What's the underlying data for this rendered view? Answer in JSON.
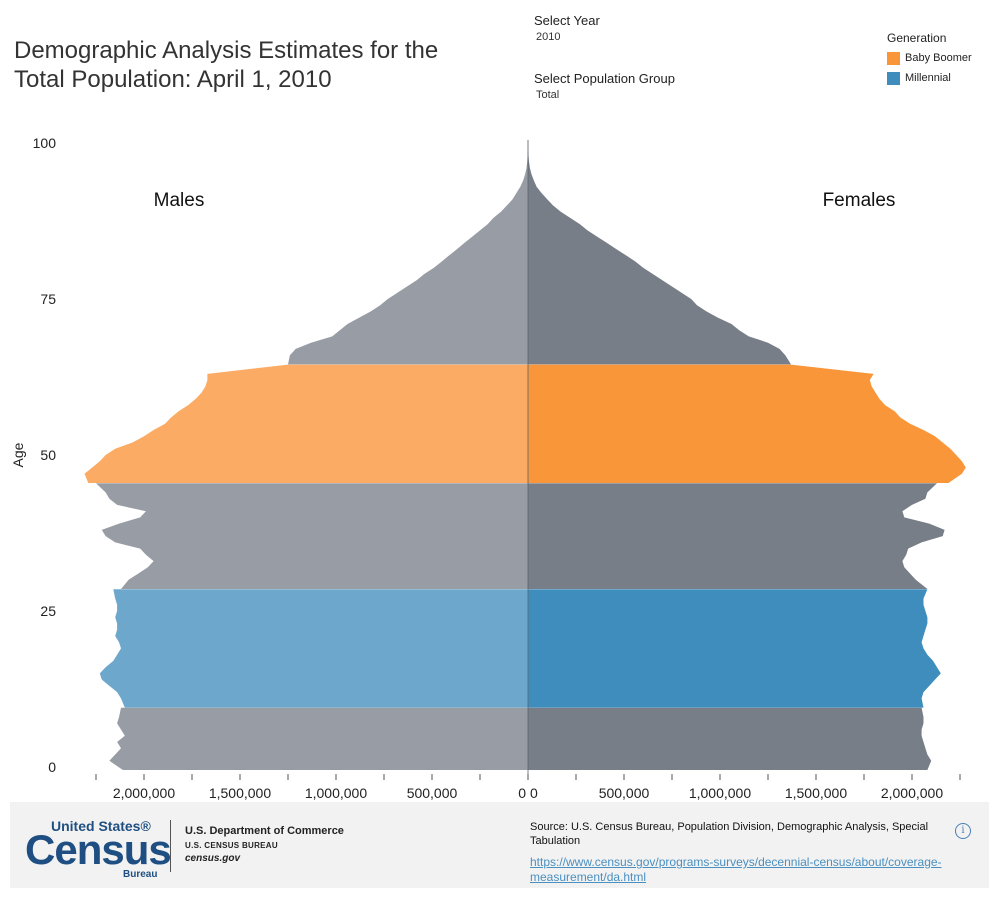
{
  "title": "Demographic Analysis Estimates for the Total Population: April 1, 2010",
  "controls": {
    "year_label": "Select Year",
    "year_value": "2010",
    "group_label": "Select Population Group",
    "group_value": "Total"
  },
  "legend": {
    "title": "Generation",
    "items": [
      {
        "label": "Baby Boomer",
        "color": "#f9963a"
      },
      {
        "label": "Millennial",
        "color": "#3f8dbd"
      }
    ]
  },
  "chart_data": {
    "type": "area",
    "subtype": "population-pyramid",
    "ylabel": "Age",
    "y_ticks": [
      0,
      25,
      50,
      75,
      100
    ],
    "x_ticks_left": [
      "2,000,000",
      "1,500,000",
      "1,000,000",
      "500,000",
      "0"
    ],
    "x_ticks_right": [
      "0",
      "500,000",
      "1,000,000",
      "1,500,000",
      "2,000,000"
    ],
    "xlim": [
      -2300000,
      2300000
    ],
    "ylim": [
      -0.5,
      100.5
    ],
    "side_labels": {
      "left": "Males",
      "right": "Females"
    },
    "colors": {
      "other_male": "#989da5",
      "other_female": "#787e87",
      "boomer_male": "#fbab63",
      "boomer_female": "#f9963a",
      "millennial_male": "#6ea7cc",
      "millennial_female": "#3f8dbd"
    },
    "generations": [
      {
        "name": "",
        "age_range": [
          0,
          9
        ]
      },
      {
        "name": "Millennial",
        "age_range": [
          10,
          28
        ]
      },
      {
        "name": "",
        "age_range": [
          29,
          45
        ]
      },
      {
        "name": "Baby Boomer",
        "age_range": [
          46,
          64
        ]
      },
      {
        "name": "",
        "age_range": [
          65,
          100
        ]
      }
    ],
    "ages": [
      0,
      1,
      2,
      3,
      4,
      5,
      6,
      7,
      8,
      9,
      10,
      11,
      12,
      13,
      14,
      15,
      16,
      17,
      18,
      19,
      20,
      21,
      22,
      23,
      24,
      25,
      26,
      27,
      28,
      29,
      30,
      31,
      32,
      33,
      34,
      35,
      36,
      37,
      38,
      39,
      40,
      41,
      42,
      43,
      44,
      45,
      46,
      47,
      48,
      49,
      50,
      51,
      52,
      53,
      54,
      55,
      56,
      57,
      58,
      59,
      60,
      61,
      62,
      63,
      64,
      65,
      66,
      67,
      68,
      69,
      70,
      71,
      72,
      73,
      74,
      75,
      76,
      77,
      78,
      79,
      80,
      81,
      82,
      83,
      84,
      85,
      86,
      87,
      88,
      89,
      90,
      91,
      92,
      93,
      94,
      95,
      96,
      97,
      98,
      99,
      100
    ],
    "males": [
      2110000,
      2180000,
      2150000,
      2120000,
      2140000,
      2100000,
      2120000,
      2140000,
      2130000,
      2120000,
      2100000,
      2120000,
      2140000,
      2180000,
      2220000,
      2230000,
      2200000,
      2160000,
      2140000,
      2120000,
      2130000,
      2150000,
      2140000,
      2140000,
      2150000,
      2140000,
      2140000,
      2150000,
      2160000,
      2120000,
      2080000,
      2030000,
      1980000,
      1950000,
      1990000,
      2020000,
      2150000,
      2200000,
      2220000,
      2130000,
      2020000,
      1990000,
      2140000,
      2180000,
      2200000,
      2250000,
      2290000,
      2310000,
      2270000,
      2230000,
      2200000,
      2150000,
      2060000,
      2000000,
      1950000,
      1890000,
      1860000,
      1820000,
      1770000,
      1730000,
      1700000,
      1680000,
      1670000,
      1670000,
      1250000,
      1250000,
      1240000,
      1210000,
      1130000,
      1020000,
      980000,
      940000,
      880000,
      820000,
      770000,
      730000,
      680000,
      630000,
      580000,
      540000,
      490000,
      450000,
      410000,
      370000,
      330000,
      290000,
      250000,
      210000,
      180000,
      140000,
      110000,
      80000,
      60000,
      40000,
      25000,
      15000,
      8000,
      4000,
      2000,
      1000,
      500
    ],
    "females": [
      2080000,
      2100000,
      2080000,
      2070000,
      2060000,
      2050000,
      2050000,
      2060000,
      2060000,
      2050000,
      2060000,
      2050000,
      2060000,
      2090000,
      2120000,
      2150000,
      2130000,
      2110000,
      2080000,
      2060000,
      2050000,
      2060000,
      2070000,
      2080000,
      2080000,
      2070000,
      2060000,
      2060000,
      2080000,
      2080000,
      2020000,
      1990000,
      1960000,
      1950000,
      1970000,
      1980000,
      2050000,
      2160000,
      2170000,
      2090000,
      1960000,
      1950000,
      2000000,
      2070000,
      2080000,
      2130000,
      2190000,
      2260000,
      2280000,
      2260000,
      2230000,
      2200000,
      2160000,
      2120000,
      2060000,
      1990000,
      1940000,
      1910000,
      1860000,
      1830000,
      1810000,
      1790000,
      1780000,
      1800000,
      1370000,
      1370000,
      1340000,
      1310000,
      1250000,
      1150000,
      1100000,
      1060000,
      990000,
      930000,
      880000,
      850000,
      800000,
      750000,
      700000,
      650000,
      600000,
      560000,
      510000,
      460000,
      410000,
      360000,
      310000,
      270000,
      220000,
      170000,
      130000,
      100000,
      70000,
      45000,
      30000,
      18000,
      10000,
      5000,
      2500,
      1200,
      600
    ]
  },
  "footer": {
    "logo_top": "United States®",
    "logo_main": "Census",
    "logo_bottom": "Bureau",
    "dept": "U.S. Department of Commerce",
    "bureau": "U.S. CENSUS BUREAU",
    "site": "census.gov",
    "source": "Source: U.S. Census Bureau, Population Division, Demographic Analysis, Special Tabulation",
    "link": "https://www.census.gov/programs-surveys/decennial-census/about/coverage-measurement/da.html",
    "info_icon": "i"
  }
}
